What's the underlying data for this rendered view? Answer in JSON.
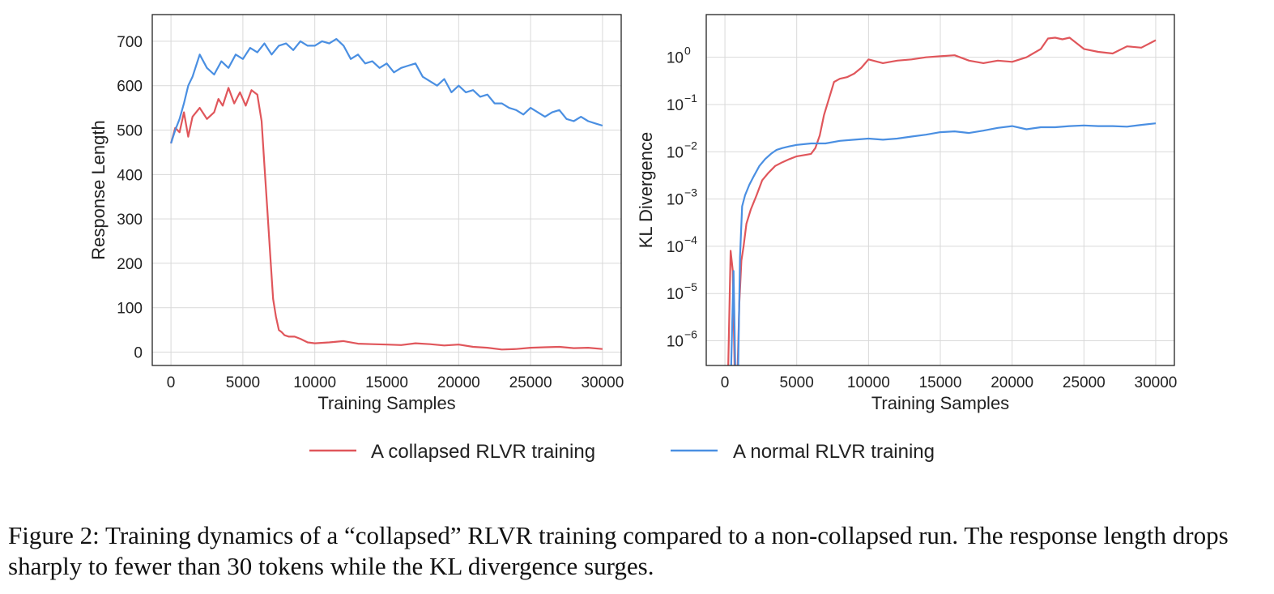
{
  "colors": {
    "collapsed": "#e0565b",
    "normal": "#4a8fe2"
  },
  "legend": [
    {
      "label": "A collapsed RLVR training",
      "color": "#e0565b"
    },
    {
      "label": "A normal RLVR training",
      "color": "#4a8fe2"
    }
  ],
  "caption": "Figure 2: Training dynamics of a “collapsed” RLVR training compared to a non-collapsed run. The response length drops sharply to fewer than 30 tokens while the KL divergence surges.",
  "chart_data": [
    {
      "type": "line",
      "xlabel": "Training Samples",
      "ylabel": "Response Length",
      "xlim": [
        -1300,
        31300
      ],
      "ylim": [
        -30,
        760
      ],
      "xticks": [
        0,
        5000,
        10000,
        15000,
        20000,
        25000,
        30000
      ],
      "yticks": [
        0,
        100,
        200,
        300,
        400,
        500,
        600,
        700
      ],
      "grid": true,
      "series": [
        {
          "name": "A collapsed RLVR training",
          "x": [
            0,
            300,
            600,
            900,
            1200,
            1500,
            2000,
            2500,
            3000,
            3300,
            3600,
            4000,
            4400,
            4800,
            5200,
            5600,
            6000,
            6300,
            6500,
            6700,
            6900,
            7100,
            7300,
            7500,
            7700,
            7900,
            8200,
            8600,
            9000,
            9500,
            10000,
            11000,
            12000,
            13000,
            14000,
            15000,
            16000,
            17000,
            18000,
            19000,
            20000,
            21000,
            22000,
            23000,
            24000,
            25000,
            26000,
            27000,
            28000,
            29000,
            30000
          ],
          "y": [
            470,
            505,
            495,
            540,
            485,
            530,
            550,
            525,
            540,
            570,
            555,
            595,
            560,
            585,
            555,
            590,
            580,
            520,
            420,
            320,
            220,
            120,
            80,
            50,
            45,
            38,
            35,
            35,
            30,
            22,
            20,
            22,
            25,
            19,
            18,
            17,
            16,
            20,
            18,
            15,
            17,
            12,
            10,
            6,
            7,
            10,
            11,
            12,
            9,
            10,
            7
          ]
        },
        {
          "name": "A normal RLVR training",
          "x": [
            0,
            300,
            600,
            900,
            1200,
            1500,
            2000,
            2500,
            3000,
            3500,
            4000,
            4500,
            5000,
            5500,
            6000,
            6500,
            7000,
            7500,
            8000,
            8500,
            9000,
            9500,
            10000,
            10500,
            11000,
            11500,
            12000,
            12500,
            13000,
            13500,
            14000,
            14500,
            15000,
            15500,
            16000,
            16500,
            17000,
            17500,
            18000,
            18500,
            19000,
            19500,
            20000,
            20500,
            21000,
            21500,
            22000,
            22500,
            23000,
            23500,
            24000,
            24500,
            25000,
            25500,
            26000,
            26500,
            27000,
            27500,
            28000,
            28500,
            29000,
            29500,
            30000
          ],
          "y": [
            470,
            500,
            525,
            560,
            600,
            620,
            670,
            640,
            625,
            655,
            640,
            670,
            660,
            685,
            675,
            695,
            670,
            690,
            695,
            680,
            700,
            690,
            690,
            700,
            695,
            705,
            690,
            660,
            670,
            650,
            655,
            640,
            650,
            630,
            640,
            645,
            650,
            620,
            610,
            600,
            615,
            585,
            600,
            585,
            590,
            575,
            580,
            560,
            560,
            550,
            545,
            535,
            550,
            540,
            530,
            540,
            545,
            525,
            520,
            530,
            520,
            515,
            510
          ]
        }
      ]
    },
    {
      "type": "line",
      "xlabel": "Training Samples",
      "ylabel": "KL Divergence",
      "yscale": "log",
      "xlim": [
        -1300,
        31300
      ],
      "ylim": [
        3e-07,
        8
      ],
      "xticks": [
        0,
        5000,
        10000,
        15000,
        20000,
        25000,
        30000
      ],
      "yticks": [
        1e-06,
        1e-05,
        0.0001,
        0.001,
        0.01,
        0.1,
        1
      ],
      "grid": true,
      "series": [
        {
          "name": "A collapsed RLVR training",
          "x": [
            200,
            400,
            550,
            700,
            850,
            1000,
            1150,
            1300,
            1500,
            1800,
            2200,
            2600,
            3000,
            3500,
            4000,
            4500,
            5000,
            5500,
            6000,
            6300,
            6600,
            6900,
            7200,
            7600,
            8000,
            8500,
            9000,
            9500,
            10000,
            11000,
            12000,
            13000,
            14000,
            15000,
            16000,
            17000,
            18000,
            19000,
            20000,
            21000,
            22000,
            22500,
            23000,
            23500,
            24000,
            25000,
            26000,
            27000,
            28000,
            29000,
            30000
          ],
          "y": [
            1e-07,
            8e-05,
            3e-05,
            1e-07,
            1e-07,
            6e-06,
            5e-05,
            0.0001,
            0.0003,
            0.0006,
            0.0012,
            0.0025,
            0.0035,
            0.005,
            0.006,
            0.007,
            0.008,
            0.0085,
            0.009,
            0.012,
            0.022,
            0.06,
            0.12,
            0.3,
            0.35,
            0.38,
            0.45,
            0.6,
            0.9,
            0.75,
            0.85,
            0.9,
            1.0,
            1.05,
            1.1,
            0.85,
            0.75,
            0.85,
            0.8,
            1.0,
            1.5,
            2.5,
            2.6,
            2.4,
            2.6,
            1.5,
            1.3,
            1.2,
            1.7,
            1.6,
            2.3
          ]
        },
        {
          "name": "A normal RLVR training",
          "x": [
            400,
            600,
            750,
            900,
            1050,
            1200,
            1400,
            1700,
            2000,
            2400,
            2800,
            3200,
            3600,
            4000,
            4500,
            5000,
            6000,
            7000,
            8000,
            9000,
            10000,
            11000,
            12000,
            13000,
            14000,
            15000,
            16000,
            17000,
            18000,
            19000,
            20000,
            21000,
            22000,
            23000,
            24000,
            25000,
            26000,
            27000,
            28000,
            29000,
            30000
          ],
          "y": [
            1e-07,
            3e-05,
            1e-07,
            1e-07,
            6e-05,
            0.0007,
            0.0012,
            0.002,
            0.003,
            0.005,
            0.007,
            0.009,
            0.011,
            0.012,
            0.013,
            0.014,
            0.015,
            0.015,
            0.017,
            0.018,
            0.019,
            0.018,
            0.019,
            0.021,
            0.023,
            0.026,
            0.027,
            0.025,
            0.028,
            0.032,
            0.035,
            0.03,
            0.033,
            0.033,
            0.035,
            0.036,
            0.035,
            0.035,
            0.034,
            0.037,
            0.04
          ]
        }
      ]
    }
  ]
}
